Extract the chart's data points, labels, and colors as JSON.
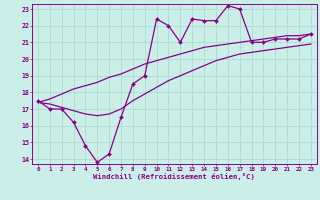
{
  "xlabel": "Windchill (Refroidissement éolien,°C)",
  "background_color": "#cceee8",
  "grid_color": "#aaddcc",
  "line_color": "#880088",
  "xlim": [
    -0.5,
    23.5
  ],
  "ylim": [
    13.7,
    23.3
  ],
  "yticks": [
    14,
    15,
    16,
    17,
    18,
    19,
    20,
    21,
    22,
    23
  ],
  "xticks": [
    0,
    1,
    2,
    3,
    4,
    5,
    6,
    7,
    8,
    9,
    10,
    11,
    12,
    13,
    14,
    15,
    16,
    17,
    18,
    19,
    20,
    21,
    22,
    23
  ],
  "hours": [
    0,
    1,
    2,
    3,
    4,
    5,
    6,
    7,
    8,
    9,
    10,
    11,
    12,
    13,
    14,
    15,
    16,
    17,
    18,
    19,
    20,
    21,
    22,
    23
  ],
  "temp_actual": [
    17.5,
    17.0,
    17.0,
    16.2,
    14.8,
    13.8,
    14.3,
    16.5,
    18.5,
    19.0,
    22.4,
    22.0,
    21.0,
    22.4,
    22.3,
    22.3,
    23.2,
    23.0,
    21.0,
    21.0,
    21.2,
    21.2,
    21.2,
    21.5
  ],
  "temp_smooth_low": [
    17.4,
    17.3,
    17.1,
    16.9,
    16.7,
    16.6,
    16.7,
    17.0,
    17.5,
    17.9,
    18.3,
    18.7,
    19.0,
    19.3,
    19.6,
    19.9,
    20.1,
    20.3,
    20.4,
    20.5,
    20.6,
    20.7,
    20.8,
    20.9
  ],
  "temp_smooth_high": [
    17.4,
    17.6,
    17.9,
    18.2,
    18.4,
    18.6,
    18.9,
    19.1,
    19.4,
    19.7,
    19.9,
    20.1,
    20.3,
    20.5,
    20.7,
    20.8,
    20.9,
    21.0,
    21.1,
    21.2,
    21.3,
    21.4,
    21.4,
    21.5
  ]
}
